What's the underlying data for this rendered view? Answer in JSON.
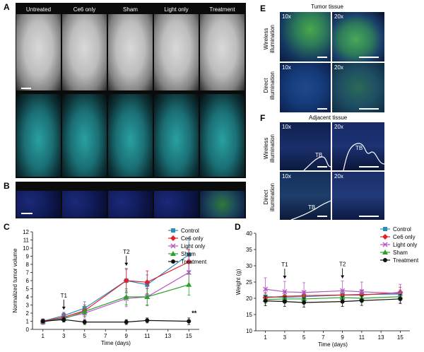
{
  "panel_labels": {
    "a": "A",
    "b": "B",
    "c": "C",
    "d": "D",
    "e": "E",
    "f": "F"
  },
  "groups": [
    "Untreated",
    "Ce6 only",
    "Sham",
    "Light only",
    "Treatment"
  ],
  "panel_e": {
    "title": "Tumor tissue",
    "mag": [
      "10x",
      "20x"
    ],
    "rows": [
      "Wireless illumination",
      "Direct illumination"
    ]
  },
  "panel_f": {
    "title": "Adjacent tissue",
    "mag": [
      "10x",
      "20x"
    ],
    "rows": [
      "Wireless illumination",
      "Direct illumination"
    ],
    "tb": "TB"
  },
  "colors": {
    "control": "#2b8cbe",
    "ce6": "#e0202a",
    "light": "#b855c8",
    "sham": "#2ca02c",
    "treatment": "#111111"
  },
  "chart_data": [
    {
      "type": "line",
      "panel": "C",
      "xlabel": "Time (days)",
      "ylabel": "Normalized tumor volume",
      "x": [
        1,
        3,
        5,
        7,
        9,
        11,
        13,
        15
      ],
      "xlim": [
        0,
        16
      ],
      "ylim": [
        0,
        12
      ],
      "yticks": [
        0,
        1,
        2,
        3,
        4,
        5,
        6,
        7,
        8,
        9,
        10,
        11,
        12
      ],
      "legend_position": "top-right",
      "annotations": [
        {
          "label": "T1",
          "x": 3
        },
        {
          "label": "T2",
          "x": 9
        },
        {
          "label": "**",
          "x": 15
        }
      ],
      "series": [
        {
          "name": "Control",
          "color": "#2b8cbe",
          "marker": "square",
          "x": [
            1,
            3,
            5,
            9,
            11,
            15
          ],
          "y": [
            1.0,
            1.7,
            2.6,
            6.0,
            5.5,
            9.2
          ],
          "err": [
            0.3,
            0.4,
            0.8,
            1.5,
            1.2,
            2.0
          ]
        },
        {
          "name": "Ce6 only",
          "color": "#e0202a",
          "marker": "diamond",
          "x": [
            1,
            3,
            5,
            9,
            11,
            15
          ],
          "y": [
            1.0,
            1.5,
            2.3,
            6.0,
            5.8,
            8.3
          ],
          "err": [
            0.3,
            0.5,
            0.7,
            1.4,
            1.4,
            1.5
          ]
        },
        {
          "name": "Light only",
          "color": "#b855c8",
          "marker": "x",
          "x": [
            1,
            3,
            5,
            9,
            11,
            15
          ],
          "y": [
            0.9,
            1.4,
            2.0,
            3.8,
            4.0,
            7.0
          ],
          "err": [
            0.3,
            0.4,
            0.6,
            1.0,
            1.1,
            1.6
          ]
        },
        {
          "name": "Sham",
          "color": "#2ca02c",
          "marker": "triangle",
          "x": [
            1,
            3,
            5,
            9,
            11,
            15
          ],
          "y": [
            1.0,
            1.3,
            2.2,
            4.0,
            4.0,
            5.5
          ],
          "err": [
            0.2,
            0.4,
            0.6,
            1.0,
            1.0,
            1.3
          ]
        },
        {
          "name": "Treatment",
          "color": "#111111",
          "marker": "circle",
          "x": [
            1,
            3,
            5,
            9,
            11,
            15
          ],
          "y": [
            1.0,
            1.2,
            0.9,
            0.9,
            1.1,
            1.0
          ],
          "err": [
            0.2,
            0.3,
            0.3,
            0.3,
            0.3,
            0.4
          ]
        }
      ]
    },
    {
      "type": "line",
      "panel": "D",
      "xlabel": "Time (days)",
      "ylabel": "Weight (g)",
      "x": [
        1,
        3,
        5,
        7,
        9,
        11,
        13,
        15
      ],
      "xlim": [
        0,
        16
      ],
      "ylim": [
        10,
        40
      ],
      "yticks": [
        10,
        15,
        20,
        25,
        30,
        35,
        40
      ],
      "legend_position": "top-right",
      "annotations": [
        {
          "label": "T1",
          "x": 3
        },
        {
          "label": "T2",
          "x": 9
        }
      ],
      "series": [
        {
          "name": "Control",
          "color": "#2b8cbe",
          "marker": "square",
          "x": [
            1,
            3,
            5,
            9,
            11,
            15
          ],
          "y": [
            20.5,
            20.3,
            20.5,
            21.0,
            21.2,
            21.3
          ],
          "err": [
            1.2,
            1.3,
            1.3,
            1.4,
            1.4,
            1.3
          ]
        },
        {
          "name": "Ce6 only",
          "color": "#e0202a",
          "marker": "diamond",
          "x": [
            1,
            3,
            5,
            9,
            11,
            15
          ],
          "y": [
            20.2,
            20.6,
            20.8,
            21.0,
            21.0,
            21.8
          ],
          "err": [
            1.4,
            1.5,
            1.4,
            1.5,
            1.5,
            1.6
          ]
        },
        {
          "name": "Light only",
          "color": "#b855c8",
          "marker": "x",
          "x": [
            1,
            3,
            5,
            9,
            11,
            15
          ],
          "y": [
            22.8,
            22.0,
            21.8,
            22.3,
            22.0,
            21.5
          ],
          "err": [
            3.5,
            3.2,
            3.0,
            3.0,
            3.0,
            2.8
          ]
        },
        {
          "name": "Sham",
          "color": "#2ca02c",
          "marker": "triangle",
          "x": [
            1,
            3,
            5,
            9,
            11,
            15
          ],
          "y": [
            19.6,
            19.8,
            19.8,
            20.2,
            20.0,
            20.5
          ],
          "err": [
            1.3,
            1.3,
            1.2,
            1.3,
            1.3,
            1.2
          ]
        },
        {
          "name": "Treatment",
          "color": "#111111",
          "marker": "circle",
          "x": [
            1,
            3,
            5,
            9,
            11,
            15
          ],
          "y": [
            19.2,
            19.0,
            18.7,
            19.0,
            19.3,
            19.8
          ],
          "err": [
            1.5,
            1.5,
            1.4,
            1.5,
            1.5,
            1.4
          ]
        }
      ]
    }
  ]
}
